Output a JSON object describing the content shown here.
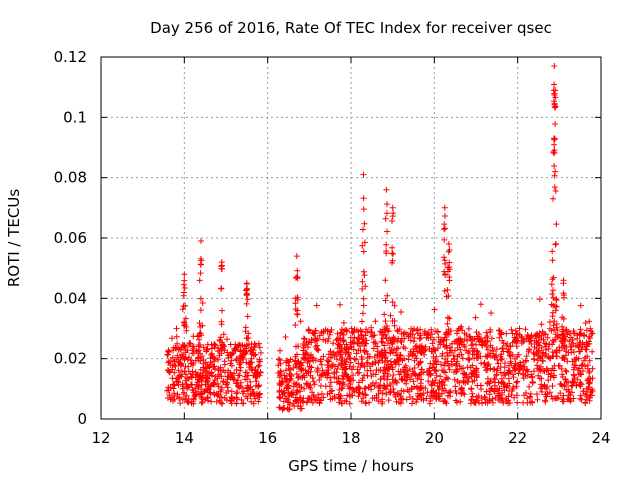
{
  "chart_data": {
    "type": "scatter",
    "title": "Day 256 of 2016, Rate Of TEC Index for receiver qsec",
    "xlabel": "GPS time / hours",
    "ylabel": "ROTI / TECUs",
    "xlim": [
      12,
      24
    ],
    "ylim": [
      0,
      0.12
    ],
    "x_ticks": [
      "12",
      "14",
      "16",
      "18",
      "20",
      "22",
      "24"
    ],
    "y_ticks": [
      "0",
      "0.02",
      "0.04",
      "0.06",
      "0.08",
      "0.1",
      "0.12"
    ],
    "grid": true,
    "marker": "+",
    "marker_color": "#ff0000",
    "segments": [
      {
        "x_start": 13.55,
        "x_end": 15.85,
        "base_low": 0.005,
        "base_high": 0.025
      },
      {
        "x_start": 16.25,
        "x_end": 16.85,
        "base_low": 0.003,
        "base_high": 0.02
      },
      {
        "x_start": 16.85,
        "x_end": 23.8,
        "base_low": 0.005,
        "base_high": 0.03
      }
    ],
    "peaks": [
      {
        "x": 14.0,
        "y": 0.048
      },
      {
        "x": 14.4,
        "y": 0.059
      },
      {
        "x": 14.9,
        "y": 0.052
      },
      {
        "x": 15.5,
        "y": 0.045
      },
      {
        "x": 16.7,
        "y": 0.054
      },
      {
        "x": 18.3,
        "y": 0.081
      },
      {
        "x": 18.85,
        "y": 0.076
      },
      {
        "x": 19.0,
        "y": 0.07
      },
      {
        "x": 20.25,
        "y": 0.07
      },
      {
        "x": 20.35,
        "y": 0.058
      },
      {
        "x": 22.88,
        "y": 0.117
      },
      {
        "x": 22.9,
        "y": 0.109
      },
      {
        "x": 22.87,
        "y": 0.093
      },
      {
        "x": 23.1,
        "y": 0.046
      }
    ]
  }
}
